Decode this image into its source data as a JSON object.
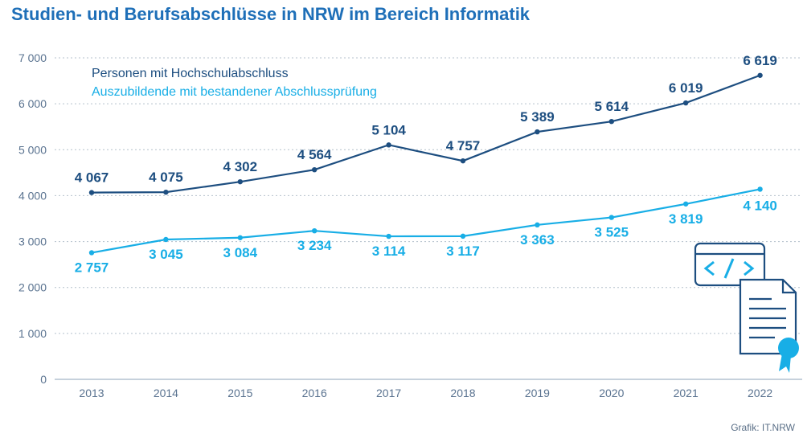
{
  "chart_data": {
    "type": "line",
    "title": "Studien- und Berufsabschlüsse in NRW im Bereich Informatik",
    "xlabel": "",
    "ylabel": "",
    "categories": [
      "2013",
      "2014",
      "2015",
      "2016",
      "2017",
      "2018",
      "2019",
      "2020",
      "2021",
      "2022"
    ],
    "ylim": [
      0,
      7000
    ],
    "yticks": [
      0,
      1000,
      2000,
      3000,
      4000,
      5000,
      6000,
      7000
    ],
    "ytick_labels": [
      "0",
      "1 000",
      "2 000",
      "3 000",
      "4 000",
      "5 000",
      "6 000",
      "7 000"
    ],
    "grid": "horizontal dotted",
    "legend": "top-left",
    "series": [
      {
        "name": "Personen mit Hochschulabschluss",
        "color": "#1d4e80",
        "values": [
          4067,
          4075,
          4302,
          4564,
          5104,
          4757,
          5389,
          5614,
          6019,
          6619
        ],
        "labels": [
          "4 067",
          "4 075",
          "4 302",
          "4 564",
          "5 104",
          "4 757",
          "5 389",
          "5 614",
          "6 019",
          "6 619"
        ]
      },
      {
        "name": "Auszubildende mit bestandener Abschlussprüfung",
        "color": "#18aee6",
        "values": [
          2757,
          3045,
          3084,
          3234,
          3114,
          3117,
          3363,
          3525,
          3819,
          4140
        ],
        "labels": [
          "2 757",
          "3 045",
          "3 084",
          "3 234",
          "3 114",
          "3 117",
          "3 363",
          "3 525",
          "3 819",
          "4 140"
        ]
      }
    ]
  },
  "decoration": {
    "code_icon": "code-window-icon",
    "certificate_icon": "certificate-icon"
  },
  "footer": {
    "credit": "Grafik: IT.NRW"
  }
}
